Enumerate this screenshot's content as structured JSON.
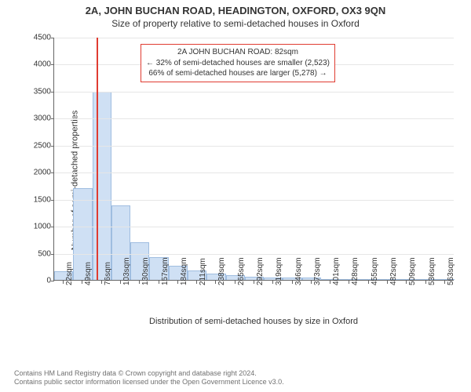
{
  "title": "2A, JOHN BUCHAN ROAD, HEADINGTON, OXFORD, OX3 9QN",
  "subtitle": "Size of property relative to semi-detached houses in Oxford",
  "y_axis": {
    "label": "Number of semi-detached properties",
    "min": 0,
    "max": 4500,
    "tick_step": 500,
    "ticks": [
      0,
      500,
      1000,
      1500,
      2000,
      2500,
      3000,
      3500,
      4000,
      4500
    ]
  },
  "x_axis": {
    "label": "Distribution of semi-detached houses by size in Oxford",
    "tick_labels": [
      "22sqm",
      "49sqm",
      "76sqm",
      "103sqm",
      "130sqm",
      "157sqm",
      "184sqm",
      "211sqm",
      "238sqm",
      "265sqm",
      "292sqm",
      "319sqm",
      "346sqm",
      "373sqm",
      "401sqm",
      "428sqm",
      "455sqm",
      "482sqm",
      "509sqm",
      "536sqm",
      "563sqm"
    ],
    "bin_start": 22,
    "bin_width": 27,
    "n_bins": 21
  },
  "chart": {
    "type": "histogram",
    "bar_fill": "#cfe0f4",
    "bar_stroke": "#9fbde0",
    "bar_stroke_width": 1,
    "grid_color": "#e6e6e6",
    "axis_color": "#666666",
    "background_color": "#ffffff",
    "values": [
      160,
      1700,
      3480,
      1380,
      700,
      420,
      260,
      170,
      120,
      90,
      60,
      50,
      45,
      45,
      5,
      5,
      5,
      5,
      5,
      2,
      2
    ]
  },
  "marker": {
    "value_sqm": 82,
    "color": "#e03c31"
  },
  "annotation": {
    "border_color": "#e03c31",
    "lines": [
      "2A JOHN BUCHAN ROAD: 82sqm",
      "← 32% of semi-detached houses are smaller (2,523)",
      "66% of semi-detached houses are larger (5,278) →"
    ]
  },
  "credits": {
    "line1": "Contains HM Land Registry data © Crown copyright and database right 2024.",
    "line2": "Contains public sector information licensed under the Open Government Licence v3.0."
  }
}
